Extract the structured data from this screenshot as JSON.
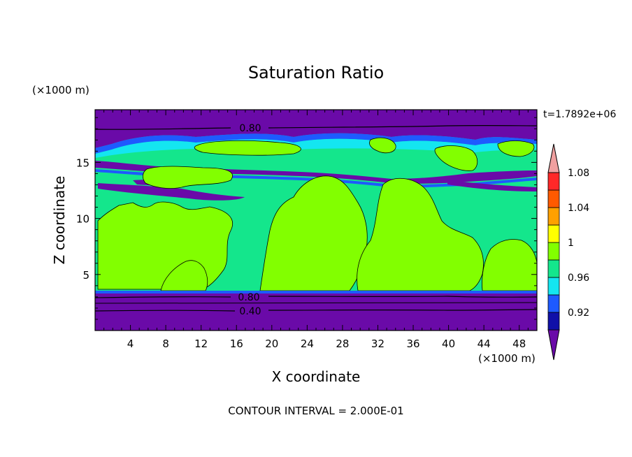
{
  "chart_data": {
    "type": "contour",
    "title": "Saturation Ratio",
    "xlabel": "X coordinate",
    "ylabel": "Z coordinate",
    "x_unit": "(×1000 m)",
    "y_unit": "(×1000 m)",
    "xlim": [
      0,
      50
    ],
    "ylim": [
      0,
      19.7
    ],
    "x_ticks": [
      4,
      8,
      12,
      16,
      20,
      24,
      28,
      32,
      36,
      40,
      44,
      48
    ],
    "y_ticks": [
      5,
      10,
      15
    ],
    "time_label": "t=1.7892e+06",
    "footer": "CONTOUR INTERVAL = 2.000E-01",
    "contour_labels": [
      "0.80",
      "0.80",
      "0.40"
    ],
    "colorbar": {
      "labels": [
        "0.92",
        "0.96",
        "1",
        "1.04",
        "1.08"
      ],
      "bins": [
        {
          "color": "#6a0aa8"
        },
        {
          "color": "#1010a8"
        },
        {
          "color": "#1e5aff"
        },
        {
          "color": "#14e6f0"
        },
        {
          "color": "#14e68c"
        },
        {
          "color": "#82ff00"
        },
        {
          "color": "#ffff00"
        },
        {
          "color": "#ffa000"
        },
        {
          "color": "#ff5a00"
        },
        {
          "color": "#ff2828"
        },
        {
          "color": "#f0a0a0"
        }
      ]
    }
  }
}
